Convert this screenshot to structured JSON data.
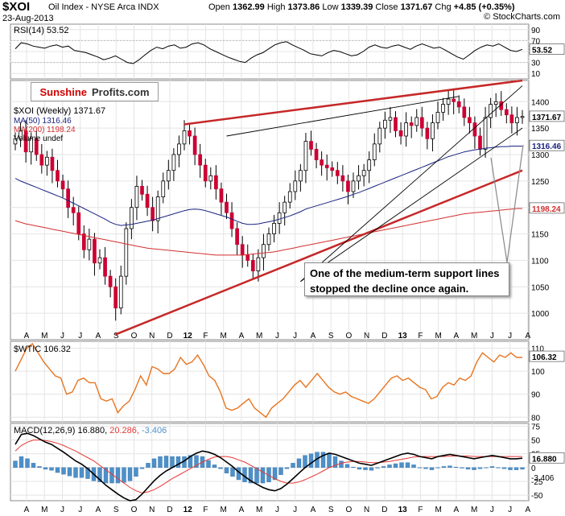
{
  "header": {
    "symbol": "$XOI",
    "description": "Oil Index - NYSE Arca INDX",
    "date": "23-Aug-2013",
    "open_label": "Open",
    "open": "1362.99",
    "high_label": "High",
    "high": "1373.86",
    "low_label": "Low",
    "low": "1339.39",
    "close_label": "Close",
    "close": "1371.67",
    "chg_label": "Chg",
    "chg": "+4.85 (+0.35%)",
    "credit": "© StockCharts.com"
  },
  "branding": {
    "part1": "Sunshine",
    "part2": "Profits.com"
  },
  "annotation": {
    "line1": "One of the medium-term support lines",
    "line2": "stopped  the decline once again."
  },
  "colors": {
    "up": "#ffffff",
    "down": "#cc0033",
    "ma50": "#1a237e",
    "ma200": "#d32f2f",
    "trend": "#c62828",
    "wtic": "#e8741f",
    "macd": "#000000",
    "signal": "#e53935",
    "hist": "#4f90c8"
  },
  "chart_data": [
    {
      "type": "line",
      "panel": "RSI",
      "title": "RSI(14) 53.52",
      "yticks": [
        10,
        30,
        50,
        70,
        90
      ],
      "last_value": "53.52",
      "ylim": [
        0,
        100
      ],
      "values": [
        55,
        66,
        64,
        60,
        58,
        56,
        60,
        62,
        58,
        60,
        52,
        50,
        48,
        44,
        40,
        35,
        38,
        42,
        36,
        30,
        28,
        35,
        44,
        52,
        58,
        55,
        60,
        62,
        56,
        58,
        64,
        66,
        62,
        55,
        50,
        45,
        40,
        36,
        32,
        30,
        38,
        44,
        48,
        55,
        62,
        66,
        68,
        62,
        57,
        52,
        46,
        44,
        42,
        48,
        52,
        50,
        46,
        42,
        44,
        50,
        58,
        62,
        58,
        56,
        60,
        62,
        58,
        54,
        60,
        64,
        60,
        56,
        58,
        52,
        46,
        40,
        36,
        44,
        52,
        58,
        62,
        60,
        64,
        58,
        52,
        50,
        54
      ]
    },
    {
      "type": "candlestick",
      "panel": "$XOI (Weekly)",
      "title": "$XOI (Weekly) 1371.67",
      "legend": [
        "MA(50) 1316.46",
        "MA(200) 1198.24",
        "Volume undef"
      ],
      "yticks": [
        1000,
        1050,
        1100,
        1150,
        1200,
        1250,
        1300,
        1350,
        1400
      ],
      "ylim": [
        950,
        1440
      ],
      "last_close": "1371.67",
      "ma50_last": "1316.46",
      "ma200_last": "1198.24",
      "close": [
        1330,
        1345,
        1305,
        1330,
        1300,
        1280,
        1295,
        1270,
        1250,
        1235,
        1200,
        1190,
        1150,
        1120,
        1140,
        1095,
        1105,
        1070,
        1050,
        1010,
        1070,
        1160,
        1200,
        1240,
        1225,
        1200,
        1175,
        1220,
        1250,
        1270,
        1300,
        1320,
        1345,
        1335,
        1300,
        1280,
        1250,
        1260,
        1235,
        1210,
        1190,
        1160,
        1130,
        1110,
        1100,
        1080,
        1105,
        1130,
        1150,
        1170,
        1190,
        1210,
        1230,
        1250,
        1270,
        1325,
        1310,
        1290,
        1280,
        1275,
        1270,
        1260,
        1250,
        1230,
        1250,
        1260,
        1270,
        1290,
        1320,
        1350,
        1365,
        1370,
        1345,
        1335,
        1360,
        1355,
        1370,
        1350,
        1330,
        1360,
        1380,
        1395,
        1405,
        1400,
        1390,
        1370,
        1360,
        1335,
        1310,
        1370,
        1395,
        1400,
        1385,
        1375,
        1360,
        1370,
        1372
      ],
      "ma50": [
        1255,
        1250,
        1246,
        1242,
        1238,
        1234,
        1230,
        1226,
        1222,
        1218,
        1213,
        1208,
        1203,
        1198,
        1193,
        1188,
        1183,
        1178,
        1172,
        1168,
        1166,
        1167,
        1168,
        1170,
        1172,
        1174,
        1176,
        1179,
        1182,
        1185,
        1188,
        1191,
        1194,
        1196,
        1197,
        1196,
        1194,
        1191,
        1188,
        1185,
        1182,
        1178,
        1174,
        1170,
        1168,
        1168,
        1169,
        1171,
        1173,
        1175,
        1178,
        1181,
        1184,
        1188,
        1192,
        1197,
        1200,
        1203,
        1206,
        1209,
        1212,
        1215,
        1218,
        1221,
        1225,
        1228,
        1232,
        1236,
        1240,
        1244,
        1248,
        1252,
        1256,
        1260,
        1264,
        1268,
        1272,
        1276,
        1280,
        1284,
        1288,
        1292,
        1296,
        1299,
        1302,
        1305,
        1307,
        1309,
        1310,
        1312,
        1313,
        1314,
        1315,
        1315,
        1316,
        1316,
        1316
      ],
      "ma200": [
        1175,
        1172,
        1169,
        1167,
        1165,
        1163,
        1161,
        1159,
        1157,
        1155,
        1153,
        1151,
        1149,
        1147,
        1145,
        1143,
        1141,
        1139,
        1137,
        1135,
        1133,
        1131,
        1129,
        1127,
        1125,
        1123,
        1122,
        1121,
        1120,
        1119,
        1118,
        1117,
        1116,
        1115,
        1114,
        1113,
        1112,
        1111,
        1110,
        1110,
        1110,
        1110,
        1110,
        1110,
        1111,
        1112,
        1113,
        1114,
        1115,
        1116,
        1118,
        1120,
        1122,
        1124,
        1126,
        1128,
        1130,
        1132,
        1134,
        1136,
        1138,
        1140,
        1142,
        1144,
        1146,
        1148,
        1150,
        1152,
        1154,
        1156,
        1158,
        1160,
        1162,
        1164,
        1166,
        1168,
        1170,
        1172,
        1174,
        1176,
        1178,
        1180,
        1182,
        1184,
        1186,
        1188,
        1189,
        1190,
        1191,
        1192,
        1193,
        1194,
        1195,
        1196,
        1197,
        1198,
        1198
      ]
    },
    {
      "type": "line",
      "panel": "$WTIC",
      "title": "$WTIC 106.32",
      "yticks": [
        80,
        90,
        100,
        110
      ],
      "ylim": [
        78,
        113
      ],
      "last_value": "106.32",
      "values": [
        100,
        105,
        110,
        112,
        108,
        104,
        101,
        98,
        97,
        90,
        91,
        96,
        97,
        95,
        95,
        88,
        87,
        88,
        82,
        85,
        87,
        92,
        98,
        94,
        102,
        101,
        99,
        99,
        101,
        106,
        103,
        104,
        107,
        103,
        98,
        96,
        91,
        84,
        83,
        84,
        86,
        88,
        84,
        82,
        80,
        84,
        86,
        88,
        91,
        94,
        96,
        93,
        96,
        99,
        96,
        93,
        91,
        90,
        91,
        89,
        88,
        87,
        86,
        88,
        91,
        94,
        97,
        98,
        96,
        97,
        95,
        93,
        92,
        88,
        89,
        93,
        95,
        94,
        97,
        96,
        98,
        104,
        108,
        106,
        104,
        107,
        106,
        108,
        106,
        106
      ]
    },
    {
      "type": "bar-line",
      "panel": "MACD",
      "title": "MACD(12,26,9)",
      "macd_value": "16.880",
      "signal_value": "20.286",
      "hist_value": "-3.406",
      "yticks": [
        -50,
        -25,
        0,
        25,
        50,
        75
      ],
      "ylim": [
        -60,
        80
      ],
      "macd": [
        42,
        60,
        62,
        58,
        52,
        46,
        42,
        35,
        28,
        20,
        12,
        6,
        -2,
        -12,
        -22,
        -32,
        -40,
        -48,
        -55,
        -60,
        -58,
        -48,
        -36,
        -24,
        -14,
        -6,
        0,
        6,
        12,
        20,
        26,
        30,
        28,
        24,
        18,
        10,
        2,
        -8,
        -16,
        -24,
        -30,
        -36,
        -40,
        -42,
        -38,
        -30,
        -20,
        -10,
        0,
        8,
        16,
        22,
        26,
        24,
        20,
        16,
        12,
        8,
        6,
        4,
        8,
        12,
        16,
        20,
        24,
        26,
        24,
        20,
        18,
        16,
        20,
        22,
        24,
        22,
        20,
        18,
        16,
        18,
        20,
        22,
        20,
        18,
        16,
        16,
        17
      ],
      "signal": [
        30,
        40,
        46,
        50,
        50,
        49,
        47,
        44,
        40,
        35,
        30,
        24,
        18,
        12,
        4,
        -4,
        -12,
        -20,
        -28,
        -36,
        -42,
        -46,
        -44,
        -40,
        -34,
        -27,
        -20,
        -14,
        -8,
        -2,
        4,
        10,
        15,
        19,
        20,
        20,
        18,
        14,
        10,
        4,
        -2,
        -8,
        -14,
        -20,
        -25,
        -28,
        -28,
        -26,
        -22,
        -17,
        -12,
        -6,
        0,
        4,
        8,
        10,
        11,
        11,
        10,
        9,
        9,
        10,
        11,
        13,
        15,
        17,
        19,
        20,
        20,
        20,
        20,
        20,
        21,
        21,
        21,
        21,
        20,
        20,
        20,
        20,
        20,
        20,
        20,
        20,
        20
      ],
      "hist": [
        12,
        20,
        16,
        8,
        2,
        -3,
        -5,
        -9,
        -12,
        -15,
        -18,
        -18,
        -20,
        -24,
        -26,
        -28,
        -28,
        -28,
        -27,
        -24,
        -16,
        -2,
        8,
        16,
        20,
        21,
        20,
        20,
        20,
        22,
        22,
        20,
        13,
        5,
        -2,
        -10,
        -16,
        -22,
        -26,
        -28,
        -28,
        -28,
        -26,
        -22,
        -13,
        -2,
        8,
        16,
        22,
        25,
        28,
        28,
        26,
        20,
        12,
        6,
        1,
        -3,
        -4,
        -5,
        -1,
        2,
        5,
        7,
        9,
        9,
        5,
        0,
        -2,
        -4,
        0,
        2,
        3,
        1,
        -1,
        -3,
        -4,
        -2,
        0,
        2,
        0,
        -2,
        -4,
        -4,
        -3
      ]
    }
  ],
  "x_axis": {
    "labels": [
      "A",
      "M",
      "J",
      "J",
      "A",
      "S",
      "O",
      "N",
      "D",
      "12",
      "F",
      "M",
      "A",
      "M",
      "J",
      "J",
      "A",
      "S",
      "O",
      "N",
      "D",
      "13",
      "F",
      "M",
      "A",
      "M",
      "J",
      "J",
      "A"
    ]
  }
}
